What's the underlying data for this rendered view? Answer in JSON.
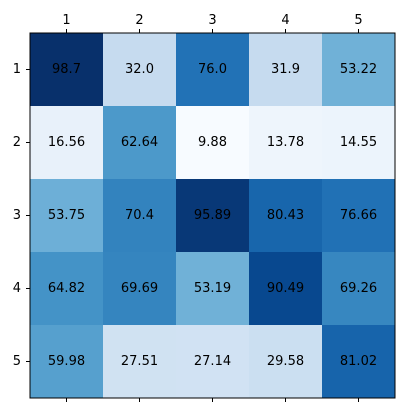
{
  "chart_data": {
    "type": "heatmap",
    "colormap": "Blues",
    "vmin": 9.88,
    "vmax": 98.7,
    "x_tick_labels": [
      "1",
      "2",
      "3",
      "4",
      "5"
    ],
    "y_tick_labels": [
      "1",
      "2",
      "3",
      "4",
      "5"
    ],
    "x_tick_position": "top",
    "cell_labels": [
      [
        "98.7",
        "32.0",
        "76.0",
        "31.9",
        "53.22"
      ],
      [
        "16.56",
        "62.64",
        "9.88",
        "13.78",
        "14.55"
      ],
      [
        "53.75",
        "70.4",
        "95.89",
        "80.43",
        "76.66"
      ],
      [
        "64.82",
        "69.69",
        "53.19",
        "90.49",
        "69.26"
      ],
      [
        "59.98",
        "27.51",
        "27.14",
        "29.58",
        "81.02"
      ]
    ],
    "values": [
      [
        98.7,
        32.0,
        76.0,
        31.9,
        53.22
      ],
      [
        16.56,
        62.64,
        9.88,
        13.78,
        14.55
      ],
      [
        53.75,
        70.4,
        95.89,
        80.43,
        76.66
      ],
      [
        64.82,
        69.69,
        53.19,
        90.49,
        69.26
      ],
      [
        59.98,
        27.51,
        27.14,
        29.58,
        81.02
      ]
    ],
    "grid": false,
    "legend": "none"
  }
}
